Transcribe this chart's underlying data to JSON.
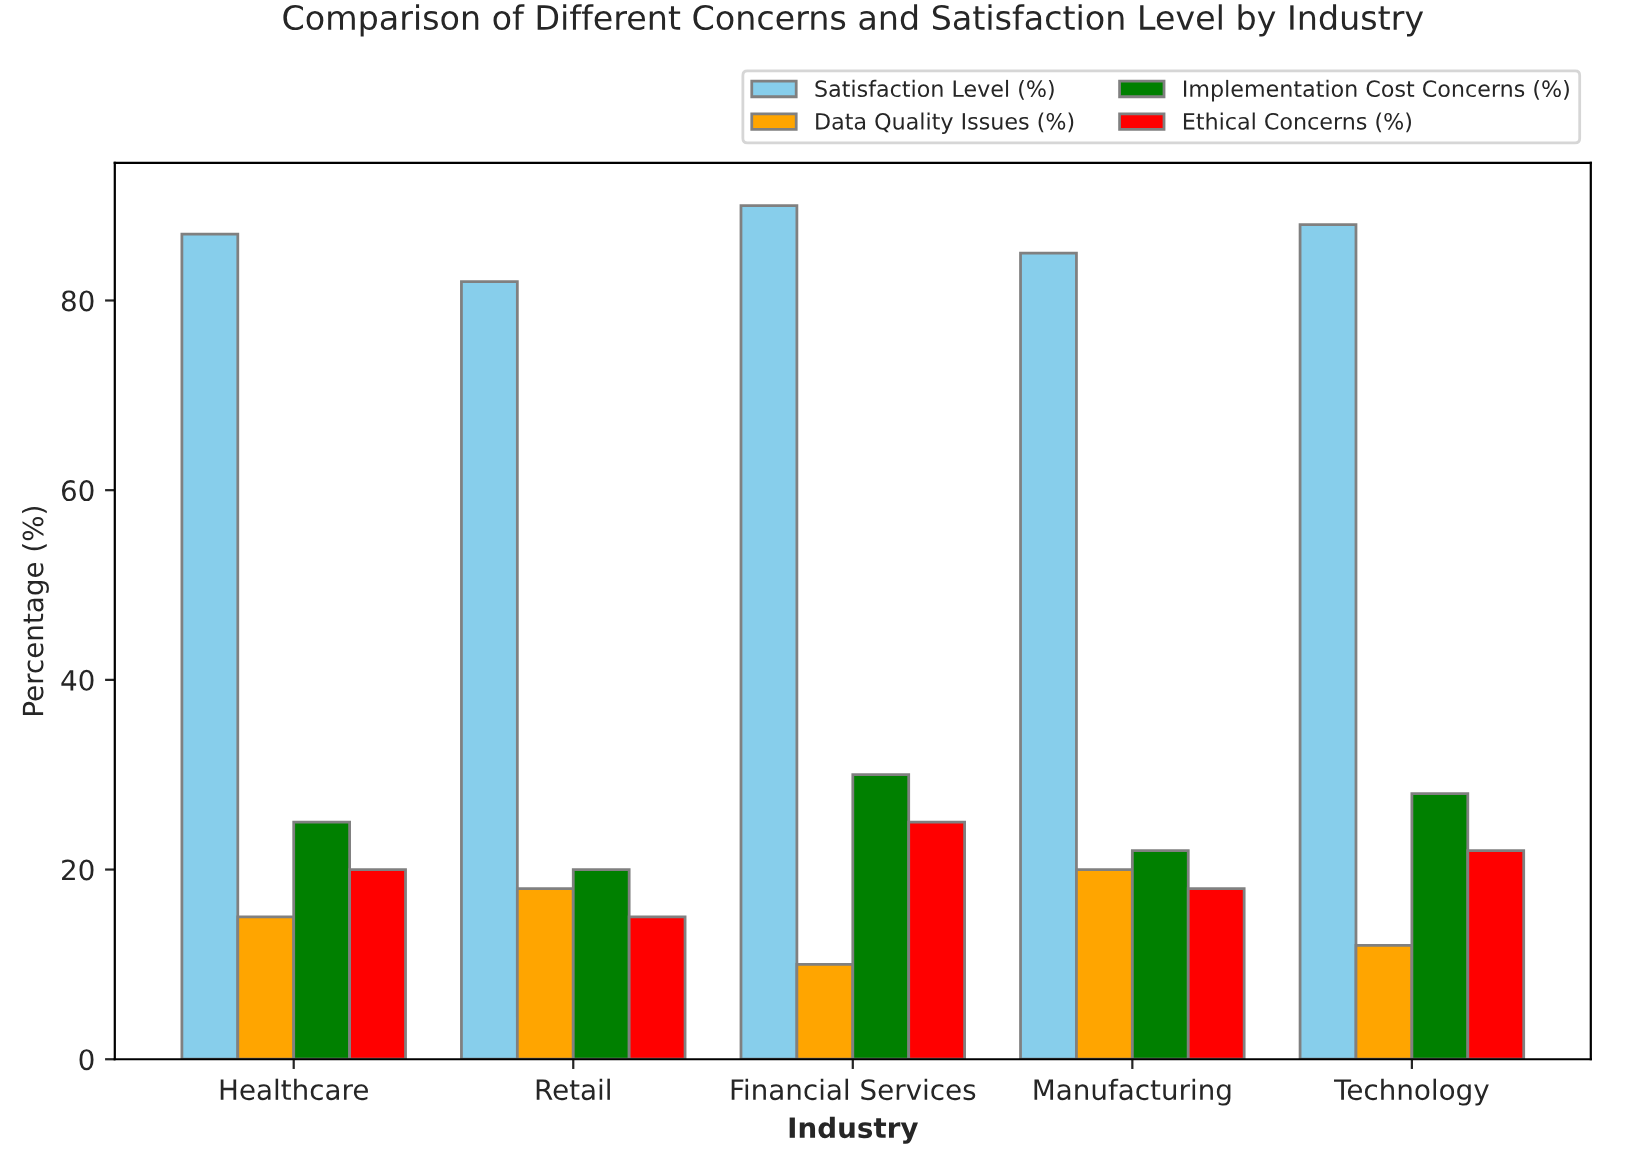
{
  "chart_data": {
    "type": "bar",
    "title": "Comparison of Different Concerns and Satisfaction Level by Industry",
    "xlabel": "Industry",
    "ylabel": "Percentage (%)",
    "categories": [
      "Healthcare",
      "Retail",
      "Financial Services",
      "Manufacturing",
      "Technology"
    ],
    "series": [
      {
        "name": "Satisfaction Level (%)",
        "color": "#87ceeb",
        "values": [
          87,
          82,
          90,
          85,
          88
        ]
      },
      {
        "name": "Data Quality Issues (%)",
        "color": "#ffa500",
        "values": [
          15,
          18,
          10,
          20,
          12
        ]
      },
      {
        "name": "Implementation Cost Concerns (%)",
        "color": "#008000",
        "values": [
          25,
          20,
          30,
          22,
          28
        ]
      },
      {
        "name": "Ethical Concerns (%)",
        "color": "#ff0000",
        "values": [
          20,
          15,
          25,
          18,
          22
        ]
      }
    ],
    "ylim": [
      0,
      94.5
    ],
    "yticks": [
      0,
      20,
      40,
      60,
      80
    ],
    "grid": false,
    "legend": "top right"
  }
}
